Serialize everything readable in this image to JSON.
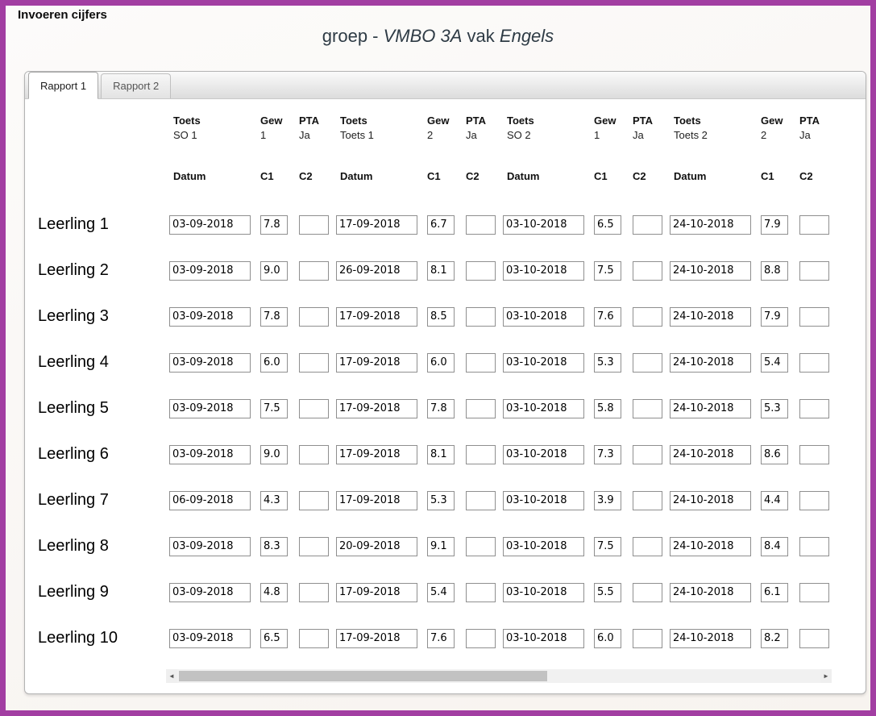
{
  "window": {
    "title": "Invoeren cijfers"
  },
  "page_title": {
    "part1": "groep - ",
    "group": "VMBO 3A",
    "part2": " vak ",
    "subject": "Engels"
  },
  "tabs": [
    {
      "label": "Rapport 1"
    },
    {
      "label": "Rapport 2"
    }
  ],
  "table": {
    "headers": {
      "toets": "Toets",
      "gew": "Gew",
      "pta": "PTA",
      "datum": "Datum",
      "c1": "C1",
      "c2": "C2"
    },
    "tests": [
      {
        "naam": "SO 1",
        "gew": "1",
        "pta": "Ja"
      },
      {
        "naam": "Toets 1",
        "gew": "2",
        "pta": "Ja"
      },
      {
        "naam": "SO 2",
        "gew": "1",
        "pta": "Ja"
      },
      {
        "naam": "Toets 2",
        "gew": "2",
        "pta": "Ja"
      }
    ],
    "students": [
      {
        "name": "Leerling 1",
        "grades": [
          {
            "datum": "03-09-2018",
            "c1": "7.8",
            "c2": ""
          },
          {
            "datum": "17-09-2018",
            "c1": "6.7",
            "c2": ""
          },
          {
            "datum": "03-10-2018",
            "c1": "6.5",
            "c2": ""
          },
          {
            "datum": "24-10-2018",
            "c1": "7.9",
            "c2": ""
          }
        ]
      },
      {
        "name": "Leerling 2",
        "grades": [
          {
            "datum": "03-09-2018",
            "c1": "9.0",
            "c2": ""
          },
          {
            "datum": "26-09-2018",
            "c1": "8.1",
            "c2": ""
          },
          {
            "datum": "03-10-2018",
            "c1": "7.5",
            "c2": ""
          },
          {
            "datum": "24-10-2018",
            "c1": "8.8",
            "c2": ""
          }
        ]
      },
      {
        "name": "Leerling 3",
        "grades": [
          {
            "datum": "03-09-2018",
            "c1": "7.8",
            "c2": ""
          },
          {
            "datum": "17-09-2018",
            "c1": "8.5",
            "c2": ""
          },
          {
            "datum": "03-10-2018",
            "c1": "7.6",
            "c2": ""
          },
          {
            "datum": "24-10-2018",
            "c1": "7.9",
            "c2": ""
          }
        ]
      },
      {
        "name": "Leerling 4",
        "grades": [
          {
            "datum": "03-09-2018",
            "c1": "6.0",
            "c2": ""
          },
          {
            "datum": "17-09-2018",
            "c1": "6.0",
            "c2": ""
          },
          {
            "datum": "03-10-2018",
            "c1": "5.3",
            "c2": ""
          },
          {
            "datum": "24-10-2018",
            "c1": "5.4",
            "c2": ""
          }
        ]
      },
      {
        "name": "Leerling 5",
        "grades": [
          {
            "datum": "03-09-2018",
            "c1": "7.5",
            "c2": ""
          },
          {
            "datum": "17-09-2018",
            "c1": "7.8",
            "c2": ""
          },
          {
            "datum": "03-10-2018",
            "c1": "5.8",
            "c2": ""
          },
          {
            "datum": "24-10-2018",
            "c1": "5.3",
            "c2": ""
          }
        ]
      },
      {
        "name": "Leerling 6",
        "grades": [
          {
            "datum": "03-09-2018",
            "c1": "9.0",
            "c2": ""
          },
          {
            "datum": "17-09-2018",
            "c1": "8.1",
            "c2": ""
          },
          {
            "datum": "03-10-2018",
            "c1": "7.3",
            "c2": ""
          },
          {
            "datum": "24-10-2018",
            "c1": "8.6",
            "c2": ""
          }
        ]
      },
      {
        "name": "Leerling 7",
        "grades": [
          {
            "datum": "06-09-2018",
            "c1": "4.3",
            "c2": ""
          },
          {
            "datum": "17-09-2018",
            "c1": "5.3",
            "c2": ""
          },
          {
            "datum": "03-10-2018",
            "c1": "3.9",
            "c2": ""
          },
          {
            "datum": "24-10-2018",
            "c1": "4.4",
            "c2": ""
          }
        ]
      },
      {
        "name": "Leerling 8",
        "grades": [
          {
            "datum": "03-09-2018",
            "c1": "8.3",
            "c2": ""
          },
          {
            "datum": "20-09-2018",
            "c1": "9.1",
            "c2": ""
          },
          {
            "datum": "03-10-2018",
            "c1": "7.5",
            "c2": ""
          },
          {
            "datum": "24-10-2018",
            "c1": "8.4",
            "c2": ""
          }
        ]
      },
      {
        "name": "Leerling 9",
        "grades": [
          {
            "datum": "03-09-2018",
            "c1": "4.8",
            "c2": ""
          },
          {
            "datum": "17-09-2018",
            "c1": "5.4",
            "c2": ""
          },
          {
            "datum": "03-10-2018",
            "c1": "5.5",
            "c2": ""
          },
          {
            "datum": "24-10-2018",
            "c1": "6.1",
            "c2": ""
          }
        ]
      },
      {
        "name": "Leerling 10",
        "grades": [
          {
            "datum": "03-09-2018",
            "c1": "6.5",
            "c2": ""
          },
          {
            "datum": "17-09-2018",
            "c1": "7.6",
            "c2": ""
          },
          {
            "datum": "03-10-2018",
            "c1": "6.0",
            "c2": ""
          },
          {
            "datum": "24-10-2018",
            "c1": "8.2",
            "c2": ""
          }
        ]
      }
    ]
  },
  "icons": {
    "scroll_left": "◄",
    "scroll_right": "►"
  },
  "colors": {
    "frame": "#a23ea2"
  }
}
